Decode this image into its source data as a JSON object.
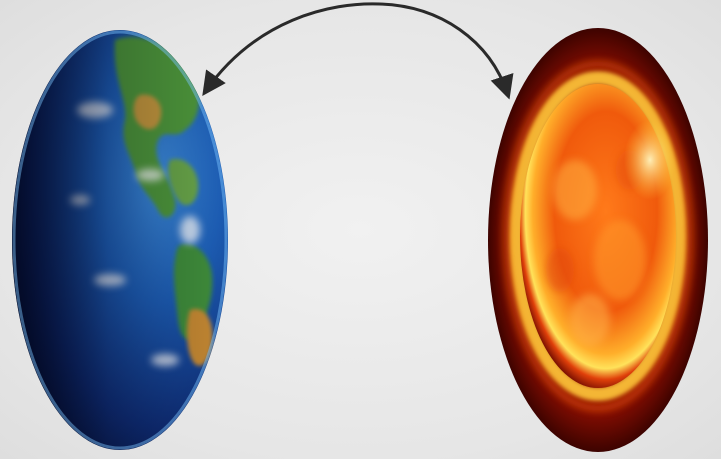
{
  "scene": {
    "background_color": "#e9e9e9",
    "objects": [
      {
        "name": "earth",
        "icon": "earth-globe-icon",
        "colors": [
          "#1d5fb8",
          "#0a1a4a",
          "#4f9a3a",
          "#c79a3c"
        ]
      },
      {
        "name": "sun",
        "icon": "sun-icon",
        "colors": [
          "#ffd23a",
          "#ff7a10",
          "#c71f08",
          "#5c0600"
        ]
      }
    ],
    "arrow": {
      "icon": "curved-arrow-icon",
      "color": "#2a2a2a",
      "direction": "both-ends"
    }
  }
}
